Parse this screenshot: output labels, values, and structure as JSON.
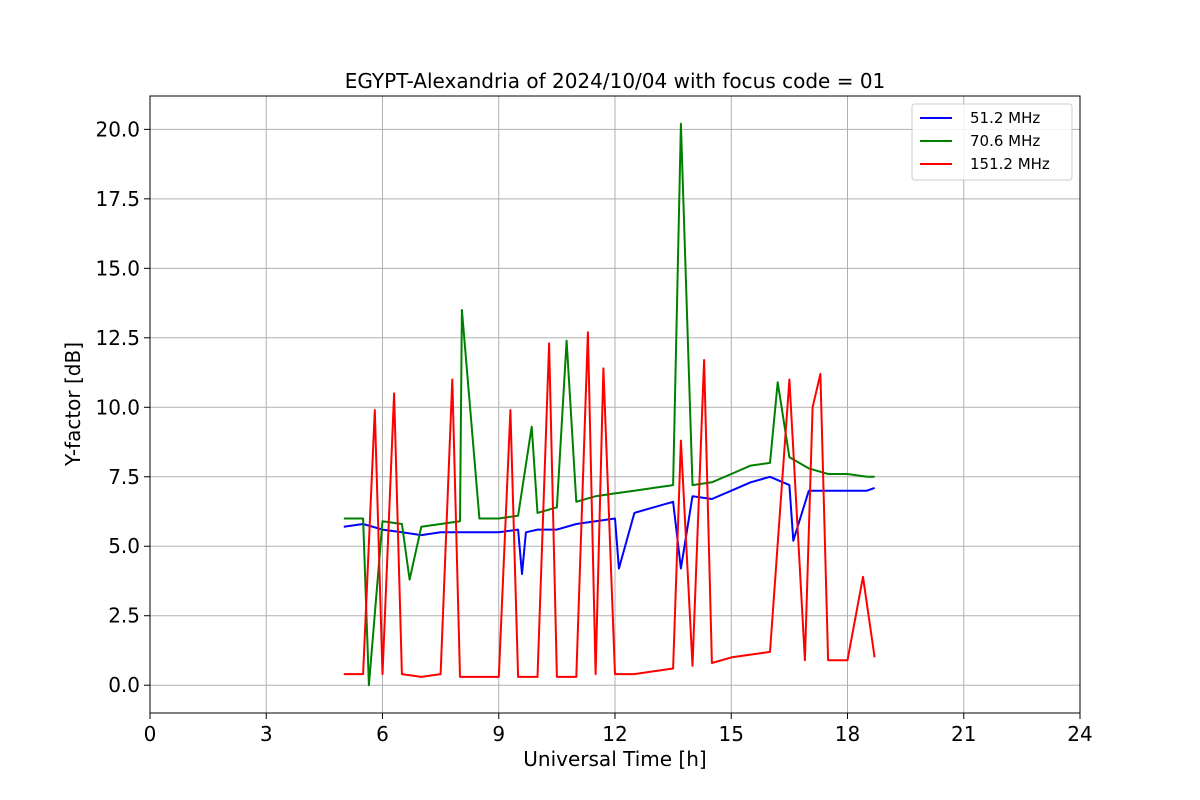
{
  "chart_data": {
    "type": "line",
    "title": "EGYPT-Alexandria of 2024/10/04 with focus code = 01",
    "xlabel": "Universal Time [h]",
    "ylabel": "Y-factor [dB]",
    "xlim": [
      0,
      24
    ],
    "ylim": [
      -1.0,
      21.2
    ],
    "xticks": [
      0,
      3,
      6,
      9,
      12,
      15,
      18,
      21,
      24
    ],
    "xtick_labels": [
      "0",
      "3",
      "6",
      "9",
      "12",
      "15",
      "18",
      "21",
      "24"
    ],
    "yticks": [
      0.0,
      2.5,
      5.0,
      7.5,
      10.0,
      12.5,
      15.0,
      17.5,
      20.0
    ],
    "ytick_labels": [
      "0.0",
      "2.5",
      "5.0",
      "7.5",
      "10.0",
      "12.5",
      "15.0",
      "17.5",
      "20.0"
    ],
    "grid": true,
    "legend_position": "top-right",
    "series": [
      {
        "name": "51.2 MHz",
        "color": "#0000ff",
        "x": [
          5.0,
          5.5,
          6.0,
          6.5,
          7.0,
          7.5,
          8.0,
          8.5,
          9.0,
          9.5,
          9.6,
          9.7,
          10.0,
          10.5,
          11.0,
          11.5,
          12.0,
          12.1,
          12.5,
          13.0,
          13.5,
          13.7,
          14.0,
          14.5,
          15.0,
          15.5,
          16.0,
          16.5,
          16.6,
          17.0,
          17.5,
          18.0,
          18.5,
          18.7
        ],
        "y": [
          5.7,
          5.8,
          5.6,
          5.5,
          5.4,
          5.5,
          5.5,
          5.5,
          5.5,
          5.6,
          4.0,
          5.5,
          5.6,
          5.6,
          5.8,
          5.9,
          6.0,
          4.2,
          6.2,
          6.4,
          6.6,
          4.2,
          6.8,
          6.7,
          7.0,
          7.3,
          7.5,
          7.2,
          5.2,
          7.0,
          7.0,
          7.0,
          7.0,
          7.1
        ]
      },
      {
        "name": "70.6 MHz",
        "color": "#008000",
        "x": [
          5.0,
          5.5,
          5.65,
          6.0,
          6.5,
          6.7,
          7.0,
          7.5,
          8.0,
          8.05,
          8.5,
          9.0,
          9.5,
          9.85,
          10.0,
          10.5,
          10.75,
          11.0,
          11.5,
          12.0,
          12.5,
          13.0,
          13.5,
          13.7,
          14.0,
          14.5,
          15.0,
          15.5,
          16.0,
          16.2,
          16.5,
          17.0,
          17.5,
          18.0,
          18.5,
          18.7
        ],
        "y": [
          6.0,
          6.0,
          0.0,
          5.9,
          5.8,
          3.8,
          5.7,
          5.8,
          5.9,
          13.5,
          6.0,
          6.0,
          6.1,
          9.3,
          6.2,
          6.4,
          12.4,
          6.6,
          6.8,
          6.9,
          7.0,
          7.1,
          7.2,
          20.2,
          7.2,
          7.3,
          7.6,
          7.9,
          8.0,
          10.9,
          8.2,
          7.8,
          7.6,
          7.6,
          7.5,
          7.5
        ]
      },
      {
        "name": "151.2 MHz",
        "color": "#ff0000",
        "x": [
          5.0,
          5.5,
          5.8,
          6.0,
          6.3,
          6.5,
          7.0,
          7.5,
          7.8,
          8.0,
          8.5,
          9.0,
          9.3,
          9.5,
          10.0,
          10.3,
          10.5,
          11.0,
          11.3,
          11.5,
          11.7,
          12.0,
          12.5,
          13.0,
          13.5,
          13.7,
          14.0,
          14.3,
          14.5,
          15.0,
          15.5,
          16.0,
          16.5,
          16.9,
          17.1,
          17.3,
          17.5,
          18.0,
          18.4,
          18.7
        ],
        "y": [
          0.4,
          0.4,
          9.9,
          0.4,
          10.5,
          0.4,
          0.3,
          0.4,
          11.0,
          0.3,
          0.3,
          0.3,
          9.9,
          0.3,
          0.3,
          12.3,
          0.3,
          0.3,
          12.7,
          0.4,
          11.4,
          0.4,
          0.4,
          0.5,
          0.6,
          8.8,
          0.7,
          11.7,
          0.8,
          1.0,
          1.1,
          1.2,
          11.0,
          0.9,
          10.0,
          11.2,
          0.9,
          0.9,
          3.9,
          1.0
        ]
      }
    ]
  }
}
